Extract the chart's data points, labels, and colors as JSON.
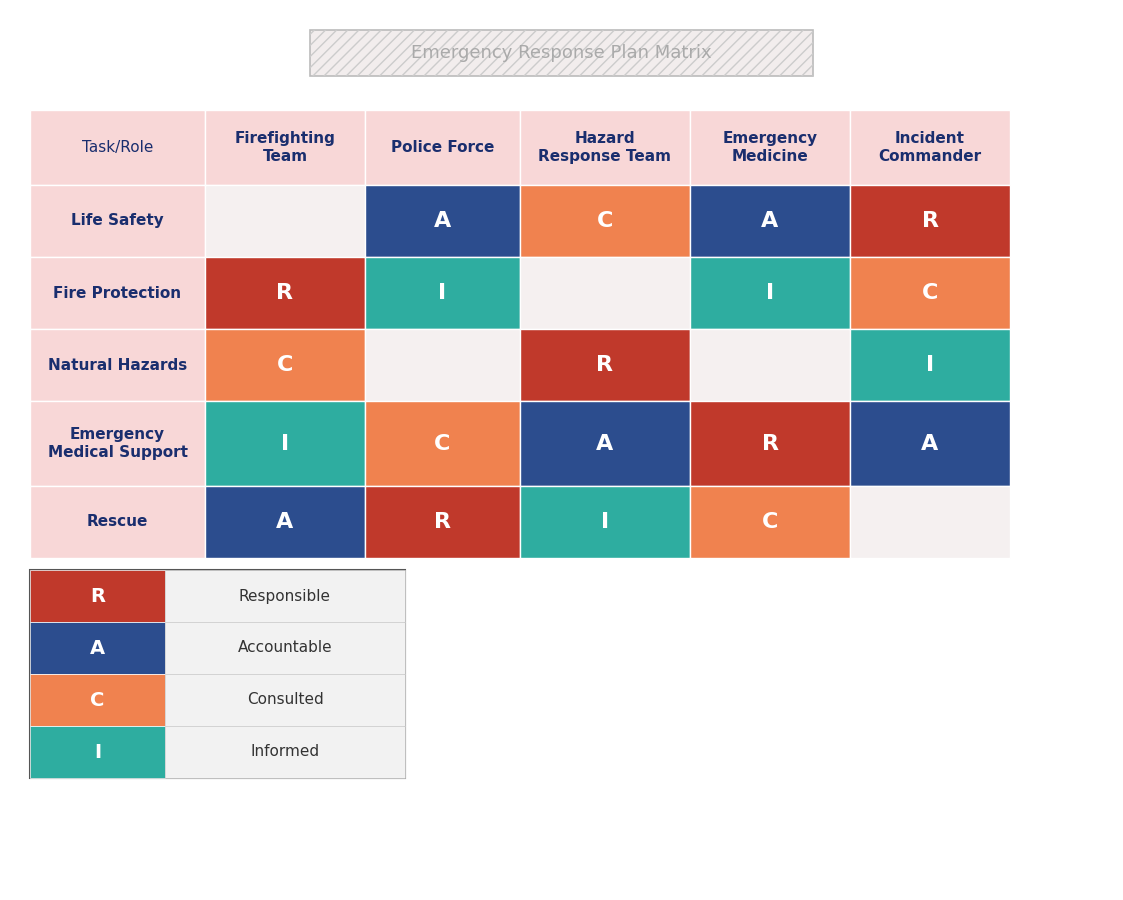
{
  "title": "Emergency Response Plan Matrix",
  "title_fontsize": 13,
  "title_color": "#aaaaaa",
  "col_headers": [
    "Task/Role",
    "Firefighting\nTeam",
    "Police Force",
    "Hazard\nResponse Team",
    "Emergency\nMedicine",
    "Incident\nCommander"
  ],
  "row_headers": [
    "Life Safety",
    "Fire Protection",
    "Natural Hazards",
    "Emergency\nMedical Support",
    "Rescue"
  ],
  "matrix": [
    [
      "",
      "A",
      "C",
      "A",
      "R"
    ],
    [
      "R",
      "I",
      "",
      "I",
      "C"
    ],
    [
      "C",
      "",
      "R",
      "",
      "I"
    ],
    [
      "I",
      "C",
      "A",
      "R",
      "A"
    ],
    [
      "A",
      "R",
      "I",
      "C",
      ""
    ]
  ],
  "colors": {
    "R": "#c0392b",
    "A": "#2c4d8e",
    "C": "#f0824f",
    "I": "#2eada0",
    "": "#f5f0f0"
  },
  "header_bg": "#f8d7d7",
  "header_text_color": "#1a2e6e",
  "cell_text_color": "#ffffff",
  "row_header_text_color": "#1a2e6e",
  "legend_label_bg": "#f2f2f2",
  "legend_items": [
    {
      "letter": "R",
      "label": "Responsible",
      "color": "#c0392b"
    },
    {
      "letter": "A",
      "label": "Accountable",
      "color": "#2c4d8e"
    },
    {
      "letter": "C",
      "label": "Consulted",
      "color": "#f0824f"
    },
    {
      "letter": "I",
      "label": "Informed",
      "color": "#2eada0"
    }
  ]
}
